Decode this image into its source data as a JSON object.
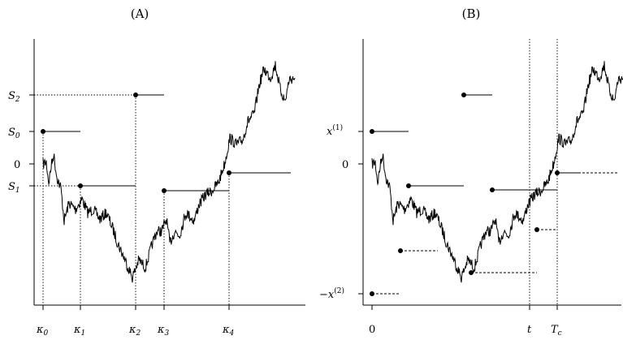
{
  "panelA": {
    "title": "(A)",
    "y_labels": [
      {
        "id": "S2",
        "main": "S",
        "sub": "2"
      },
      {
        "id": "S0",
        "main": "S",
        "sub": "0"
      },
      {
        "id": "zero",
        "main": "0",
        "sub": ""
      },
      {
        "id": "S1",
        "main": "S",
        "sub": "1"
      }
    ],
    "x_labels": [
      {
        "id": "k0",
        "main": "κ",
        "sub": "0"
      },
      {
        "id": "k1",
        "main": "κ",
        "sub": "1"
      },
      {
        "id": "k2",
        "main": "κ",
        "sub": "2"
      },
      {
        "id": "k3",
        "main": "κ",
        "sub": "3"
      },
      {
        "id": "k4",
        "main": "κ",
        "sub": "4"
      }
    ]
  },
  "panelB": {
    "title": "(B)",
    "y_labels": [
      {
        "id": "x1",
        "main": "x",
        "sup": "(1)",
        "prefix": ""
      },
      {
        "id": "zero",
        "main": "0",
        "sup": "",
        "prefix": ""
      },
      {
        "id": "x2",
        "main": "x",
        "sup": "(2)",
        "prefix": "−"
      }
    ],
    "x_labels": [
      {
        "id": "zero",
        "main": "0",
        "sub": ""
      },
      {
        "id": "t",
        "main": "t",
        "sub": ""
      },
      {
        "id": "Tc",
        "main": "T",
        "sub": "c"
      }
    ]
  }
}
